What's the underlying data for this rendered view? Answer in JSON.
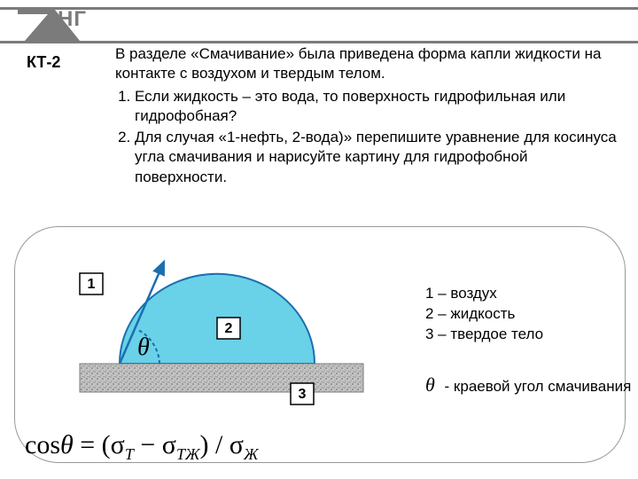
{
  "header": {
    "logo_text": "НГ"
  },
  "kt_label": "КТ-2",
  "intro_text": "В разделе «Смачивание» была приведена форма капли жидкости на контакте с воздухом и твердым телом.",
  "questions": [
    "Если жидкость – это вода, то поверхность гидрофильная или гидрофобная?",
    "Для случая «1-нефть, 2-вода)» перепишите уравнение для косинуса угла смачивания и нарисуйте картину для гидрофобной поверхности."
  ],
  "diagram": {
    "labels": {
      "air": "1",
      "liquid": "2",
      "solid": "3"
    },
    "theta": "θ",
    "colors": {
      "drop_fill": "#69d1e8",
      "drop_stroke": "#1b6fae",
      "solid_fill": "#b6b6b6",
      "solid_stroke": "#7a7a7a",
      "arrow": "#1b6fae",
      "angle_arc": "#1b6fae"
    }
  },
  "legend": {
    "l1": "1 – воздух",
    "l2": "2 – жидкость",
    "l3": "3 – твердое тело"
  },
  "theta_def": "- краевой угол смачивания",
  "formula_html": "cos<i>θ</i> = (σ<sub><i>T</i></sub> − σ<sub><i>TЖ</i></sub>) / σ<sub><i>Ж</i></sub>"
}
